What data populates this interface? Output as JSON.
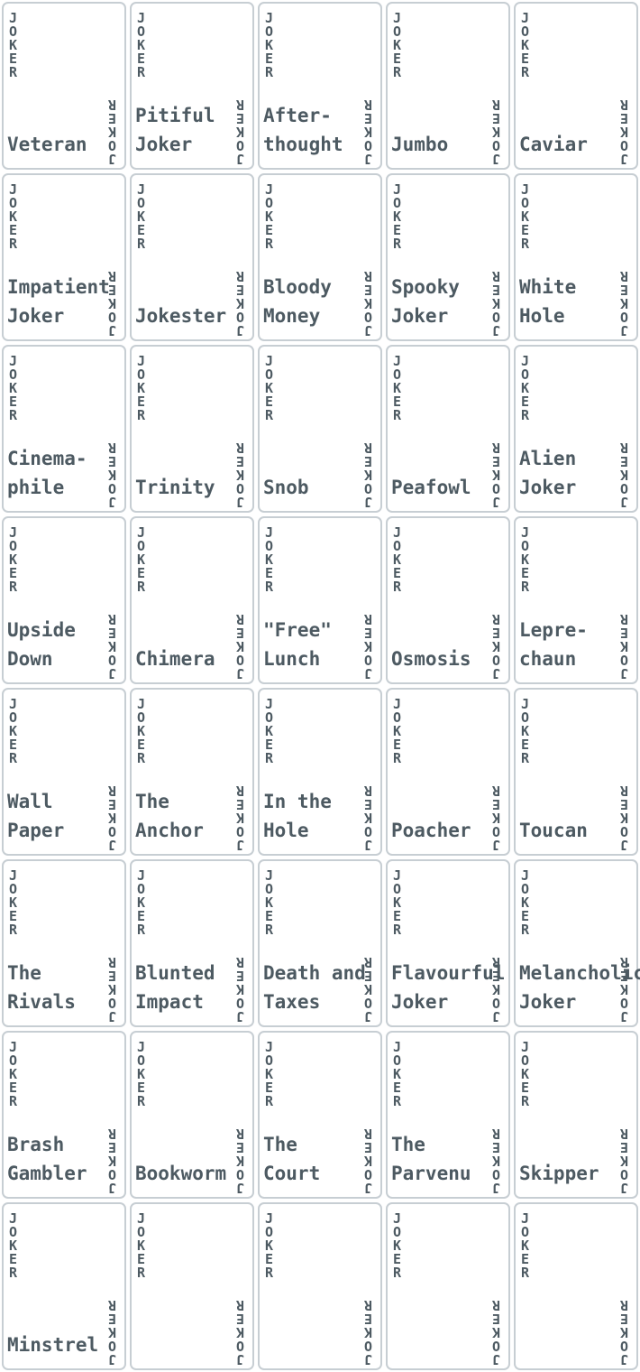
{
  "corner_text": "JOKER",
  "colors": {
    "background": "#ffffff",
    "card_border": "#c7ced3",
    "text": "#4d5a62"
  },
  "cards": [
    {
      "name": "Veteran"
    },
    {
      "name": "Pitiful\nJoker"
    },
    {
      "name": "After-\nthought"
    },
    {
      "name": "Jumbo"
    },
    {
      "name": "Caviar"
    },
    {
      "name": "Impatient\nJoker"
    },
    {
      "name": "Jokester"
    },
    {
      "name": "Bloody\nMoney"
    },
    {
      "name": "Spooky\nJoker"
    },
    {
      "name": "White\nHole"
    },
    {
      "name": "Cinema-\nphile"
    },
    {
      "name": "Trinity"
    },
    {
      "name": "Snob"
    },
    {
      "name": "Peafowl"
    },
    {
      "name": "Alien\nJoker"
    },
    {
      "name": "Upside\nDown"
    },
    {
      "name": "Chimera"
    },
    {
      "name": "\"Free\"\nLunch"
    },
    {
      "name": "Osmosis"
    },
    {
      "name": "Lepre-\nchaun"
    },
    {
      "name": "Wall\nPaper"
    },
    {
      "name": "The\nAnchor"
    },
    {
      "name": "In the\nHole"
    },
    {
      "name": "Poacher"
    },
    {
      "name": "Toucan"
    },
    {
      "name": "The\nRivals"
    },
    {
      "name": "Blunted\nImpact"
    },
    {
      "name": "Death and\nTaxes"
    },
    {
      "name": "Flavourful\nJoker"
    },
    {
      "name": "Melancholic\nJoker"
    },
    {
      "name": "Brash\nGambler"
    },
    {
      "name": "Bookworm"
    },
    {
      "name": "The\nCourt"
    },
    {
      "name": "The\nParvenu"
    },
    {
      "name": "Skipper"
    },
    {
      "name": "Minstrel"
    },
    {
      "name": ""
    },
    {
      "name": ""
    },
    {
      "name": ""
    },
    {
      "name": ""
    }
  ]
}
